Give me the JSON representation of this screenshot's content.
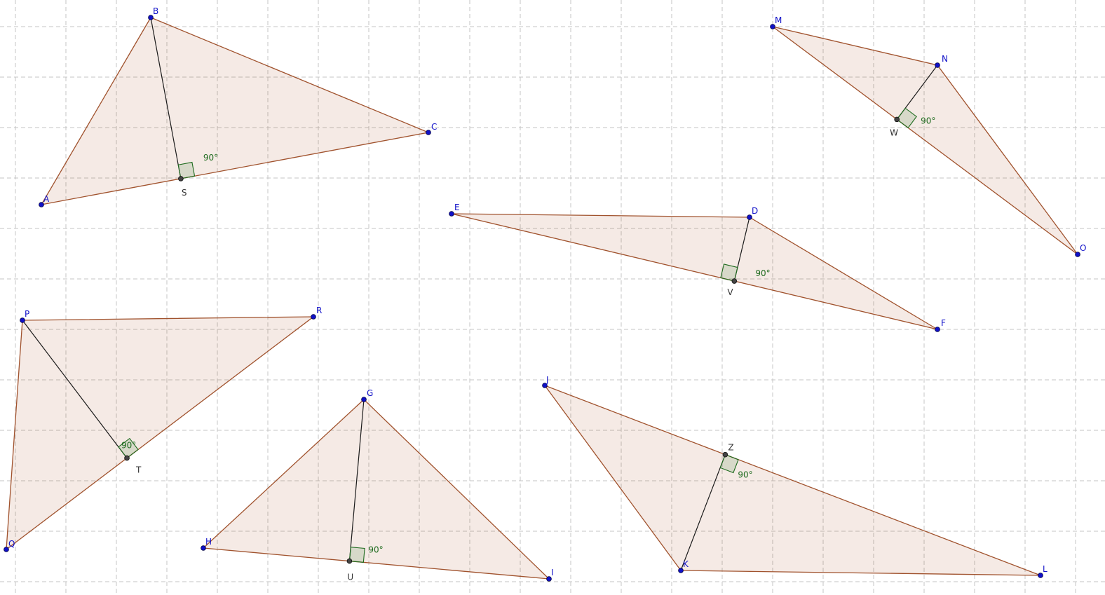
{
  "angle_label": "90°",
  "triangles": [
    {
      "vertices": [
        "A",
        "B",
        "C"
      ],
      "altitude_from": "B",
      "foot": "S"
    },
    {
      "vertices": [
        "M",
        "N",
        "O"
      ],
      "altitude_from": "N",
      "foot": "W"
    },
    {
      "vertices": [
        "E",
        "D",
        "F"
      ],
      "altitude_from": "D",
      "foot": "V"
    },
    {
      "vertices": [
        "P",
        "R",
        "Q"
      ],
      "altitude_from": "P",
      "foot": "T"
    },
    {
      "vertices": [
        "G",
        "H",
        "I"
      ],
      "altitude_from": "G",
      "foot": "U"
    },
    {
      "vertices": [
        "J",
        "K",
        "L"
      ],
      "altitude_from": "K",
      "foot": "Z"
    }
  ]
}
